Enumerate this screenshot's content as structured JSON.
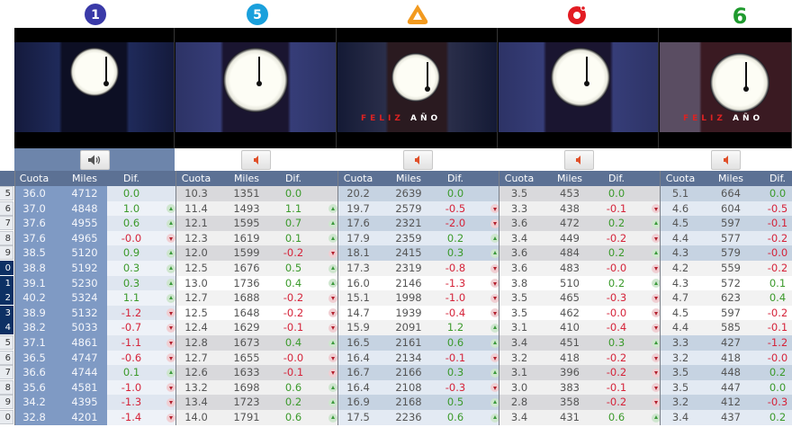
{
  "channels": [
    {
      "id": "la1",
      "logo_icon": "la1-logo-icon",
      "logo_color": "#3a3aa8",
      "logo_text": "1",
      "sound_icon": "speaker-on-icon",
      "sound_active": true
    },
    {
      "id": "telecinco",
      "logo_icon": "telecinco-logo-icon",
      "logo_color": "#1aa0dc",
      "logo_text": "5",
      "sound_icon": "speaker-muted-icon",
      "sound_active": false
    },
    {
      "id": "antena3",
      "logo_icon": "antena3-logo-icon",
      "logo_color": "#f29a1f",
      "logo_text": "",
      "sound_icon": "speaker-muted-icon",
      "sound_active": false
    },
    {
      "id": "cuatro",
      "logo_icon": "cuatro-logo-icon",
      "logo_color": "#e31c23",
      "logo_text": "",
      "sound_icon": "speaker-muted-icon",
      "sound_active": false
    },
    {
      "id": "lasexta",
      "logo_icon": "lasexta-logo-icon",
      "logo_color": "#1f9a2e",
      "logo_text": "6",
      "sound_icon": "speaker-muted-icon",
      "sound_active": false
    }
  ],
  "video_overlays": {
    "antena3_banner_red": "FELIZ",
    "antena3_banner_white": "AÑO",
    "lasexta_banner_red": "FELIZ",
    "lasexta_banner_white": "AÑO"
  },
  "headers": {
    "cuota": "Cuota",
    "miles": "Miles",
    "dif": "Dif."
  },
  "row_numbers": [
    "5",
    "6",
    "7",
    "8",
    "9",
    "0",
    "1",
    "2",
    "3",
    "4",
    "5",
    "6",
    "7",
    "8",
    "9",
    "0"
  ],
  "data": {
    "la1": [
      [
        "36.0",
        "4712",
        "0.0",
        ""
      ],
      [
        "37.0",
        "4848",
        "1.0",
        "up"
      ],
      [
        "37.6",
        "4955",
        "0.6",
        "up"
      ],
      [
        "37.6",
        "4965",
        "-0.0",
        "down"
      ],
      [
        "38.5",
        "5120",
        "0.9",
        "up"
      ],
      [
        "38.8",
        "5192",
        "0.3",
        "up"
      ],
      [
        "39.1",
        "5230",
        "0.3",
        "up"
      ],
      [
        "40.2",
        "5324",
        "1.1",
        "up"
      ],
      [
        "38.9",
        "5132",
        "-1.2",
        "down"
      ],
      [
        "38.2",
        "5033",
        "-0.7",
        "down"
      ],
      [
        "37.1",
        "4861",
        "-1.1",
        "down"
      ],
      [
        "36.5",
        "4747",
        "-0.6",
        "down"
      ],
      [
        "36.6",
        "4744",
        "0.1",
        "up"
      ],
      [
        "35.6",
        "4581",
        "-1.0",
        "down"
      ],
      [
        "34.2",
        "4395",
        "-1.3",
        "down"
      ],
      [
        "32.8",
        "4201",
        "-1.4",
        "down"
      ]
    ],
    "telecinco": [
      [
        "10.3",
        "1351",
        "0.0",
        ""
      ],
      [
        "11.4",
        "1493",
        "1.1",
        "up"
      ],
      [
        "12.1",
        "1595",
        "0.7",
        "up"
      ],
      [
        "12.3",
        "1619",
        "0.1",
        "up"
      ],
      [
        "12.0",
        "1599",
        "-0.2",
        "down"
      ],
      [
        "12.5",
        "1676",
        "0.5",
        "up"
      ],
      [
        "13.0",
        "1736",
        "0.4",
        "up"
      ],
      [
        "12.7",
        "1688",
        "-0.2",
        "down"
      ],
      [
        "12.5",
        "1648",
        "-0.2",
        "down"
      ],
      [
        "12.4",
        "1629",
        "-0.1",
        "down"
      ],
      [
        "12.8",
        "1673",
        "0.4",
        "up"
      ],
      [
        "12.7",
        "1655",
        "-0.0",
        "down"
      ],
      [
        "12.6",
        "1633",
        "-0.1",
        "down"
      ],
      [
        "13.2",
        "1698",
        "0.6",
        "up"
      ],
      [
        "13.4",
        "1723",
        "0.2",
        "up"
      ],
      [
        "14.0",
        "1791",
        "0.6",
        "up"
      ]
    ],
    "antena3": [
      [
        "20.2",
        "2639",
        "0.0",
        ""
      ],
      [
        "19.7",
        "2579",
        "-0.5",
        "down"
      ],
      [
        "17.6",
        "2321",
        "-2.0",
        "down"
      ],
      [
        "17.9",
        "2359",
        "0.2",
        "up"
      ],
      [
        "18.1",
        "2415",
        "0.3",
        "up"
      ],
      [
        "17.3",
        "2319",
        "-0.8",
        "down"
      ],
      [
        "16.0",
        "2146",
        "-1.3",
        "down"
      ],
      [
        "15.1",
        "1998",
        "-1.0",
        "down"
      ],
      [
        "14.7",
        "1939",
        "-0.4",
        "down"
      ],
      [
        "15.9",
        "2091",
        "1.2",
        "up"
      ],
      [
        "16.5",
        "2161",
        "0.6",
        "up"
      ],
      [
        "16.4",
        "2134",
        "-0.1",
        "down"
      ],
      [
        "16.7",
        "2166",
        "0.3",
        "up"
      ],
      [
        "16.4",
        "2108",
        "-0.3",
        "down"
      ],
      [
        "16.9",
        "2168",
        "0.5",
        "up"
      ],
      [
        "17.5",
        "2236",
        "0.6",
        "up"
      ]
    ],
    "cuatro": [
      [
        "3.5",
        "453",
        "0.0",
        ""
      ],
      [
        "3.3",
        "438",
        "-0.1",
        "down"
      ],
      [
        "3.6",
        "472",
        "0.2",
        "up"
      ],
      [
        "3.4",
        "449",
        "-0.2",
        "down"
      ],
      [
        "3.6",
        "484",
        "0.2",
        "up"
      ],
      [
        "3.6",
        "483",
        "-0.0",
        "down"
      ],
      [
        "3.8",
        "510",
        "0.2",
        "up"
      ],
      [
        "3.5",
        "465",
        "-0.3",
        "down"
      ],
      [
        "3.5",
        "462",
        "-0.0",
        "down"
      ],
      [
        "3.1",
        "410",
        "-0.4",
        "down"
      ],
      [
        "3.4",
        "451",
        "0.3",
        "up"
      ],
      [
        "3.2",
        "418",
        "-0.2",
        "down"
      ],
      [
        "3.1",
        "396",
        "-0.2",
        "down"
      ],
      [
        "3.0",
        "383",
        "-0.1",
        "down"
      ],
      [
        "2.8",
        "358",
        "-0.2",
        "down"
      ],
      [
        "3.4",
        "431",
        "0.6",
        "up"
      ]
    ],
    "lasexta": [
      [
        "5.1",
        "664",
        "0.0",
        ""
      ],
      [
        "4.6",
        "604",
        "-0.5",
        "down"
      ],
      [
        "4.5",
        "597",
        "-0.1",
        "down"
      ],
      [
        "4.4",
        "577",
        "-0.2",
        "down"
      ],
      [
        "4.3",
        "579",
        "-0.0",
        "down"
      ],
      [
        "4.2",
        "559",
        "-0.2",
        "down"
      ],
      [
        "4.3",
        "572",
        "0.1",
        "up"
      ],
      [
        "4.7",
        "623",
        "0.4",
        "up"
      ],
      [
        "4.5",
        "597",
        "-0.2",
        "down"
      ],
      [
        "4.4",
        "585",
        "-0.1",
        "down"
      ],
      [
        "3.3",
        "427",
        "-1.2",
        "down"
      ],
      [
        "3.2",
        "418",
        "-0.0",
        "down"
      ],
      [
        "3.5",
        "448",
        "0.2",
        "up"
      ],
      [
        "3.5",
        "447",
        "0.0",
        "up"
      ],
      [
        "3.2",
        "412",
        "-0.3",
        "down"
      ],
      [
        "3.4",
        "437",
        "0.2",
        "up"
      ]
    ]
  },
  "colors": {
    "header_bg": "#5c7194",
    "positive": "#3c9a2c",
    "negative": "#d5243a",
    "la1_column": "#7f9ac4"
  }
}
